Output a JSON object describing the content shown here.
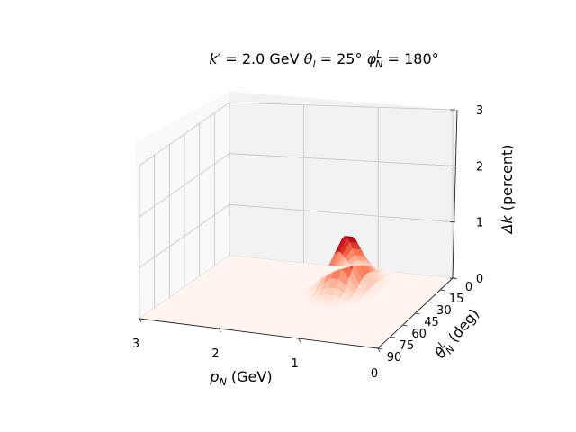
{
  "chart_data": {
    "type": "surface3d",
    "title": {
      "k_sym": "k′",
      "k_val": " = 2.0 GeV",
      "theta_sym": "θ",
      "theta_sub": "l",
      "theta_val": " = 25°",
      "phi_sym": "φ",
      "phi_sub": "N",
      "phi_sup": "L",
      "phi_val": " = 180°"
    },
    "xlabel": {
      "sym": "p",
      "sub": "N",
      "unit": " (GeV)"
    },
    "ylabel": {
      "sym": "θ",
      "sub": "N",
      "sup": "L",
      "unit": " (deg)"
    },
    "zlabel": {
      "sym": "Δk",
      "unit": " (percent)"
    },
    "x_ticks": [
      "0",
      "1",
      "2",
      "3"
    ],
    "y_ticks": [
      "0",
      "15",
      "30",
      "45",
      "60",
      "75",
      "90"
    ],
    "z_ticks": [
      "0",
      "1",
      "2",
      "3"
    ],
    "xlim": [
      0,
      3
    ],
    "ylim": [
      0,
      90
    ],
    "zlim": [
      0,
      3
    ],
    "colormap": "Reds",
    "pane_color": "#f2f2f2",
    "grid_color": "#bdbdbd",
    "peak": {
      "p_N": 1.15,
      "theta_N": 22,
      "delta_k": 0.95
    }
  }
}
